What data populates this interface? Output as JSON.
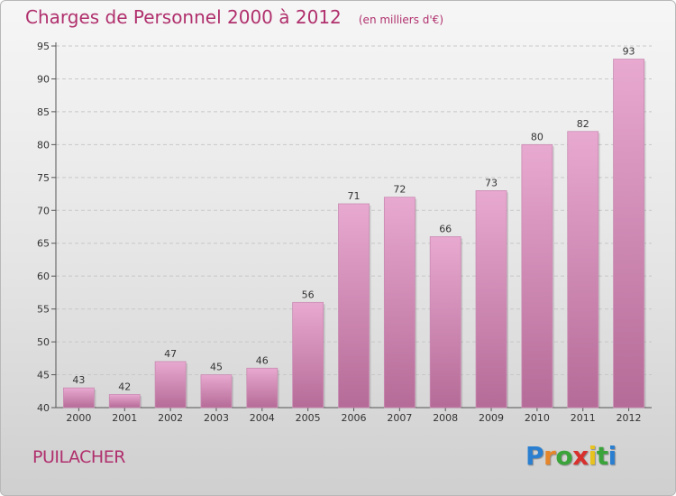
{
  "header": {
    "title": "Charges de Personnel 2000 à 2012",
    "subtitle": "(en milliers d'€)"
  },
  "commune": "PUILACHER",
  "logo": {
    "letters": [
      "P",
      "r",
      "o",
      "x",
      "i",
      "t",
      "i"
    ],
    "colors": [
      "#2a7fd0",
      "#e6862a",
      "#3aa33a",
      "#d8302d",
      "#e8c21e",
      "#3aa33a",
      "#2a7fd0"
    ]
  },
  "colors": {
    "bar_top": "#e8a9d0",
    "bar_bottom": "#b56b97",
    "axis": "#555555",
    "grid": "#c8c8c8",
    "accent": "#b0306d"
  },
  "chart_data": {
    "type": "bar",
    "title": "Charges de Personnel 2000 à 2012",
    "subtitle": "(en milliers d'€)",
    "categories": [
      "2000",
      "2001",
      "2002",
      "2003",
      "2004",
      "2005",
      "2006",
      "2007",
      "2008",
      "2009",
      "2010",
      "2011",
      "2012"
    ],
    "values": [
      43,
      42,
      47,
      45,
      46,
      56,
      71,
      72,
      66,
      73,
      80,
      82,
      93
    ],
    "ylim": [
      40,
      95
    ],
    "yticks": [
      40,
      45,
      50,
      55,
      60,
      65,
      70,
      75,
      80,
      85,
      90,
      95
    ],
    "grid": "horizontal dashed"
  }
}
